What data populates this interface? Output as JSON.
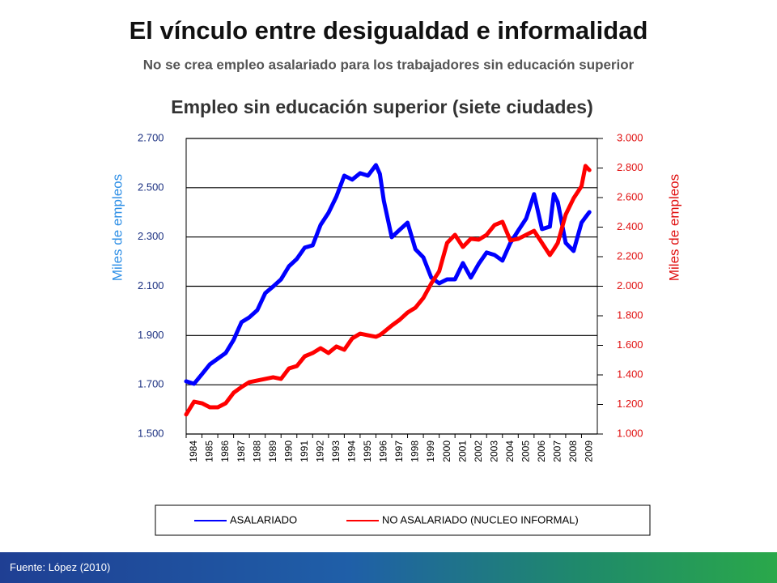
{
  "title": "El vínculo entre desigualdad e informalidad",
  "subtitle": "No se crea empleo asalariado para los trabajadores sin educación superior",
  "source": "Fuente: López (2010)",
  "chart_data": {
    "type": "line",
    "title": "Empleo sin educación superior (siete ciudades)",
    "y_label": "Miles de empleos",
    "y2_label": "Miles de empleos",
    "x": [
      1984,
      1984.5,
      1985,
      1985.5,
      1986,
      1986.5,
      1987,
      1987.5,
      1988,
      1988.5,
      1989,
      1989.5,
      1990,
      1990.5,
      1991,
      1991.5,
      1992,
      1992.5,
      1993,
      1993.5,
      1994,
      1994.5,
      1995,
      1995.5,
      1996,
      1996.25,
      1996.5,
      1997,
      1997.5,
      1998,
      1998.5,
      1999,
      1999.5,
      2000,
      2000.5,
      2001,
      2001.5,
      2002,
      2002.5,
      2003,
      2003.5,
      2004,
      2004.5,
      2005,
      2005.5,
      2006,
      2006.5,
      2007,
      2007.25,
      2007.5,
      2008,
      2008.5,
      2009,
      2009.25,
      2009.5
    ],
    "series": [
      {
        "name": "ASALARIADO",
        "color": "#0000ff",
        "axis": "y",
        "values": [
          1714,
          1704,
          1743,
          1783,
          1806,
          1829,
          1882,
          1954,
          1974,
          2003,
          2072,
          2099,
          2128,
          2181,
          2211,
          2257,
          2266,
          2349,
          2398,
          2464,
          2549,
          2533,
          2559,
          2549,
          2592,
          2556,
          2447,
          2299,
          2329,
          2358,
          2250,
          2217,
          2135,
          2112,
          2128,
          2128,
          2194,
          2135,
          2191,
          2237,
          2227,
          2204,
          2276,
          2326,
          2375,
          2474,
          2332,
          2342,
          2474,
          2441,
          2276,
          2243,
          2358,
          2380,
          2401
        ]
      },
      {
        "name": "NO ASALARIADO (NUCLEO INFORMAL)",
        "color": "#ff0000",
        "axis": "y2",
        "values": [
          1132,
          1219,
          1208,
          1181,
          1181,
          1208,
          1279,
          1318,
          1351,
          1362,
          1373,
          1384,
          1373,
          1444,
          1460,
          1526,
          1548,
          1581,
          1548,
          1592,
          1570,
          1647,
          1679,
          1668,
          1658,
          1670,
          1690,
          1734,
          1773,
          1822,
          1855,
          1921,
          2019,
          2101,
          2293,
          2348,
          2266,
          2321,
          2315,
          2348,
          2414,
          2436,
          2310,
          2321,
          2348,
          2375,
          2293,
          2211,
          2250,
          2293,
          2485,
          2595,
          2677,
          2814,
          2786
        ]
      }
    ],
    "xlim": [
      1984,
      2010
    ],
    "xticks": [
      1984,
      1985,
      1986,
      1987,
      1988,
      1989,
      1990,
      1991,
      1992,
      1993,
      1994,
      1995,
      1996,
      1997,
      1998,
      1999,
      2000,
      2001,
      2002,
      2003,
      2004,
      2005,
      2006,
      2007,
      2008,
      2009
    ],
    "ylim": [
      1500,
      2700
    ],
    "yticks": [
      {
        "value": 1500,
        "label": "1.500"
      },
      {
        "value": 1700,
        "label": "1.700"
      },
      {
        "value": 1900,
        "label": "1.900"
      },
      {
        "value": 2100,
        "label": "2.100"
      },
      {
        "value": 2300,
        "label": "2.300"
      },
      {
        "value": 2500,
        "label": "2.500"
      },
      {
        "value": 2700,
        "label": "2.700"
      }
    ],
    "y2lim": [
      1000,
      3000
    ],
    "y2ticks": [
      {
        "value": 1000,
        "label": "1.000"
      },
      {
        "value": 1200,
        "label": "1.200"
      },
      {
        "value": 1400,
        "label": "1.400"
      },
      {
        "value": 1600,
        "label": "1.600"
      },
      {
        "value": 1800,
        "label": "1.800"
      },
      {
        "value": 2000,
        "label": "2.000"
      },
      {
        "value": 2200,
        "label": "2.200"
      },
      {
        "value": 2400,
        "label": "2.400"
      },
      {
        "value": 2600,
        "label": "2.600"
      },
      {
        "value": 2800,
        "label": "2.800"
      },
      {
        "value": 3000,
        "label": "3.000"
      }
    ],
    "grid": true,
    "legend": "bottom"
  }
}
